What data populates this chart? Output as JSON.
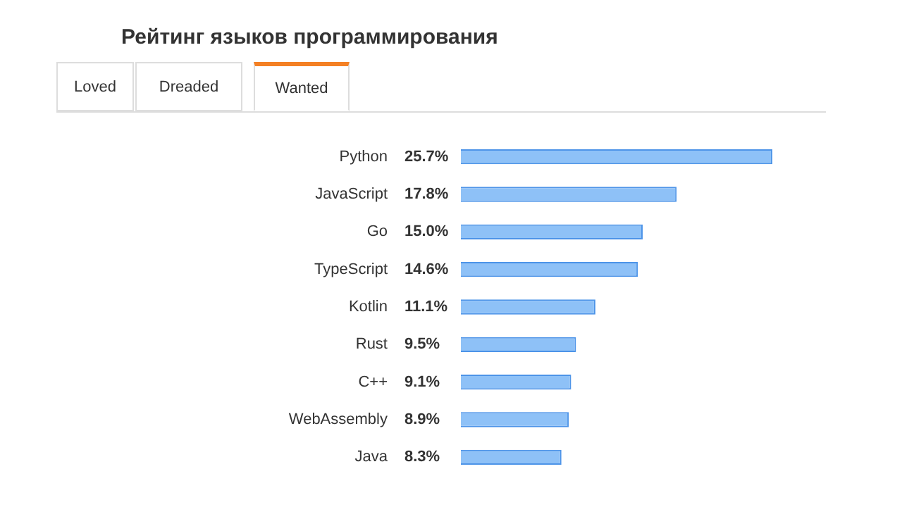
{
  "chart_data": {
    "type": "bar",
    "orientation": "horizontal",
    "title": "Рейтинг языков программирования",
    "annotations": [
      "Loved",
      "Dreaded",
      "Wanted"
    ],
    "categories": [
      "Python",
      "JavaScript",
      "Go",
      "TypeScript",
      "Kotlin",
      "Rust",
      "C++",
      "WebAssembly",
      "Java"
    ],
    "values": [
      25.7,
      17.8,
      15.0,
      14.6,
      11.1,
      9.5,
      9.1,
      8.9,
      8.3
    ],
    "value_labels": [
      "25.7%",
      "17.8%",
      "15.0%",
      "14.6%",
      "11.1%",
      "9.5%",
      "9.1%",
      "8.9%",
      "8.3%"
    ],
    "color": "#8ec1f7"
  }
}
